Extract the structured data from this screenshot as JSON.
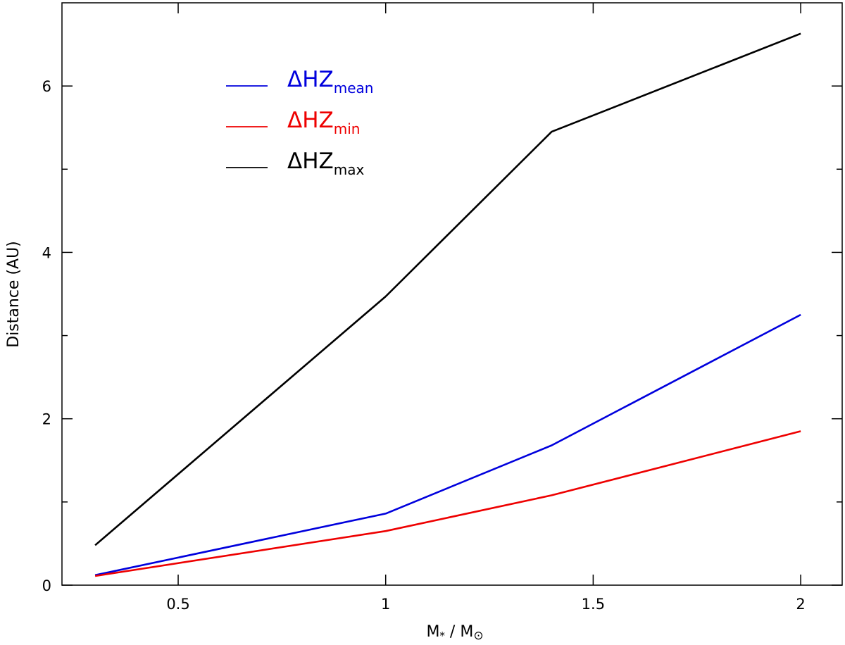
{
  "chart_data": {
    "type": "line",
    "title": "",
    "xlabel": {
      "main": "M",
      "sub1": "*",
      "sep": " / M",
      "sub2": "⊙"
    },
    "ylabel": "Distance (AU)",
    "xlim": [
      0.22,
      2.1
    ],
    "ylim": [
      0,
      7.0
    ],
    "x_ticks": [
      0.5,
      1,
      1.5,
      2
    ],
    "x_tick_labels": [
      "0.5",
      "1",
      "1.5",
      "2"
    ],
    "x_minor_ticks": [
      0.5,
      1,
      1.5,
      2
    ],
    "y_ticks": [
      0,
      2,
      4,
      6
    ],
    "y_tick_labels": [
      "0",
      "2",
      "4",
      "6"
    ],
    "y_minor_ticks": [
      1,
      3,
      5
    ],
    "grid": false,
    "legend_position": "top-left",
    "series": [
      {
        "name": "ΔHZ",
        "subscript": "mean",
        "color": "#0000dd",
        "x": [
          0.3,
          1.0,
          1.4,
          2.0
        ],
        "values": [
          0.12,
          0.86,
          1.68,
          3.25
        ]
      },
      {
        "name": "ΔHZ",
        "subscript": "min",
        "color": "#ee0000",
        "x": [
          0.3,
          1.0,
          1.4,
          2.0
        ],
        "values": [
          0.11,
          0.65,
          1.08,
          1.85
        ]
      },
      {
        "name": "ΔHZ",
        "subscript": "max",
        "color": "#000000",
        "x": [
          0.3,
          1.0,
          1.4,
          2.0
        ],
        "values": [
          0.48,
          3.47,
          5.45,
          6.63
        ]
      }
    ]
  }
}
